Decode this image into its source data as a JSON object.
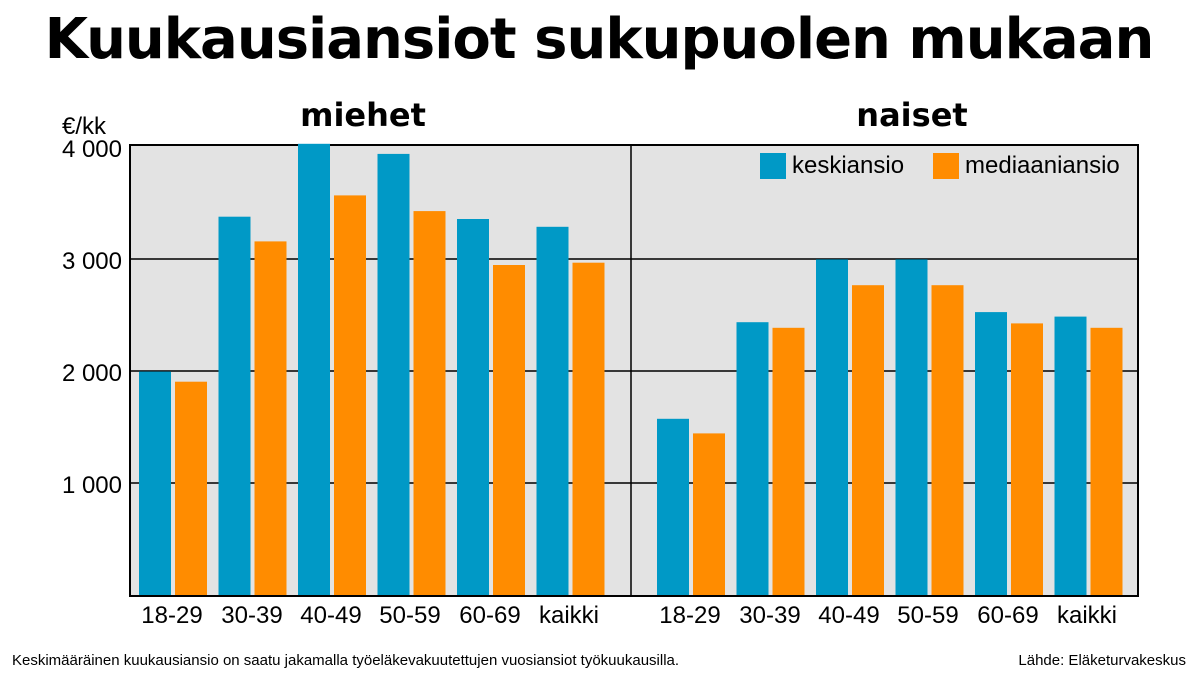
{
  "chart_data": {
    "type": "bar",
    "title": "Kuukausiansiot sukupuolen mukaan",
    "ylabel": "€/kk",
    "ylim": [
      0,
      4000
    ],
    "yticks": [
      1000,
      2000,
      3000,
      4000
    ],
    "ytick_labels": [
      "1 000",
      "2 000",
      "3 000",
      "4 000"
    ],
    "categories": [
      "18-29",
      "30-39",
      "40-49",
      "50-59",
      "60-69",
      "kaikki"
    ],
    "legend": {
      "position": "top-right"
    },
    "panels": [
      {
        "name": "miehet",
        "series": [
          {
            "name": "keskiansio",
            "values": [
              1990,
              3370,
              4020,
              3930,
              3350,
              3280
            ]
          },
          {
            "name": "mediaaniansio",
            "values": [
              1900,
              3150,
              3560,
              3420,
              2940,
              2960
            ]
          }
        ]
      },
      {
        "name": "naiset",
        "series": [
          {
            "name": "keskiansio",
            "values": [
              1570,
              2430,
              2990,
              2990,
              2520,
              2480
            ]
          },
          {
            "name": "mediaaniansio",
            "values": [
              1440,
              2380,
              2760,
              2760,
              2420,
              2380
            ]
          }
        ]
      }
    ],
    "colors": {
      "keskiansio": "#0099c6",
      "mediaaniansio": "#ff8c00",
      "plot_bg": "#e3e3e3"
    }
  },
  "footnote": "Keskimääräinen kuukausiansio on saatu jakamalla työeläkevakuutettujen vuosiansiot työkuukausilla.",
  "source": "Lähde: Eläketurvakeskus"
}
